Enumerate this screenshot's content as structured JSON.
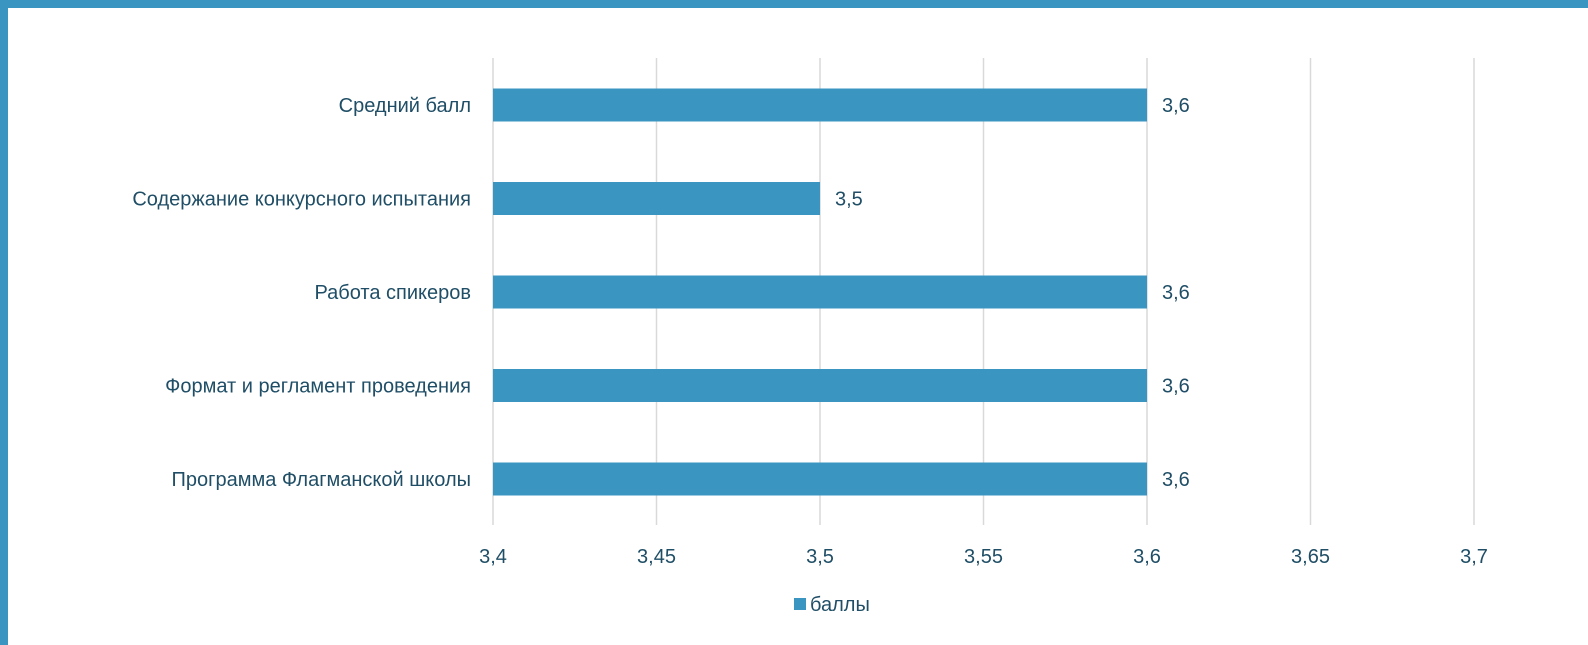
{
  "chart_data": {
    "type": "bar",
    "orientation": "horizontal",
    "categories": [
      "Средний балл",
      "Содержание конкурсного испытания",
      "Работа спикеров",
      "Формат и регламент проведения",
      "Программа  Флагманской школы"
    ],
    "series": [
      {
        "name": "баллы",
        "values": [
          3.6,
          3.5,
          3.6,
          3.6,
          3.6
        ],
        "color": "#3a96c1"
      }
    ],
    "data_labels": [
      "3,6",
      "3,5",
      "3,6",
      "3,6",
      "3,6"
    ],
    "xlim": [
      3.4,
      3.7
    ],
    "x_ticks": [
      3.4,
      3.45,
      3.5,
      3.55,
      3.6,
      3.65,
      3.7
    ],
    "x_tick_labels": [
      "3,4",
      "3,45",
      "3,5",
      "3,55",
      "3,6",
      "3,65",
      "3,7"
    ],
    "grid": true,
    "legend_position": "bottom",
    "title": "",
    "xlabel": "",
    "ylabel": ""
  },
  "colors": {
    "accent": "#3a96c1",
    "text": "#1f4e66",
    "grid": "#d9d9d9"
  }
}
